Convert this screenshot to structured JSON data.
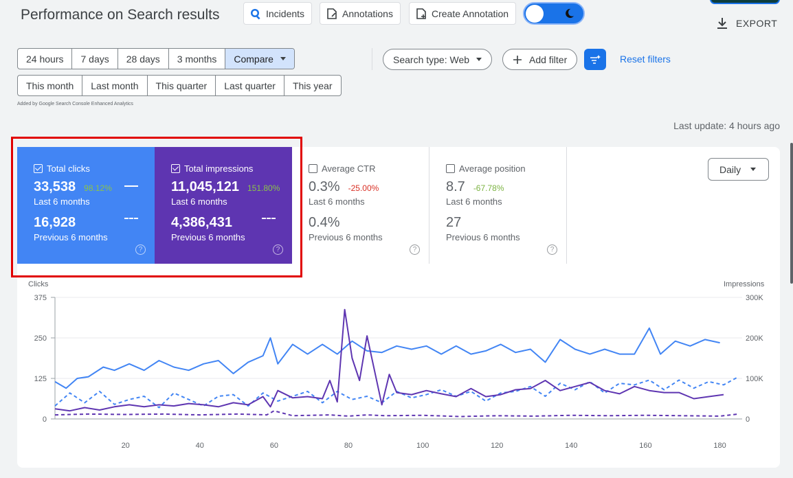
{
  "header": {
    "title": "Performance on Search results",
    "incidents_label": "Incidents",
    "annotations_label": "Annotations",
    "create_annotation_label": "Create Annotation",
    "export_label": "EXPORT"
  },
  "date_ranges": {
    "row1": [
      "24 hours",
      "7 days",
      "28 days",
      "3 months"
    ],
    "compare_label": "Compare",
    "row2": [
      "This month",
      "Last month",
      "This quarter",
      "Last quarter",
      "This year"
    ]
  },
  "filters": {
    "search_type_label": "Search type: Web",
    "add_filter_label": "Add filter",
    "reset_label": "Reset filters"
  },
  "added_note": "Added by Google Search Console Enhanced Analytics",
  "last_update": "Last update: 4 hours ago",
  "metrics": {
    "clicks": {
      "label": "Total clicks",
      "value": "33,538",
      "change": "98.12%",
      "period": "Last 6 months",
      "prev_value": "16,928",
      "prev_period": "Previous 6 months"
    },
    "impressions": {
      "label": "Total impressions",
      "value": "11,045,121",
      "change": "151.80%",
      "period": "Last 6 months",
      "prev_value": "4,386,431",
      "prev_period": "Previous 6 months"
    },
    "ctr": {
      "label": "Average CTR",
      "value": "0.3%",
      "change": "-25.00%",
      "period": "Last 6 months",
      "prev_value": "0.4%",
      "prev_period": "Previous 6 months"
    },
    "position": {
      "label": "Average position",
      "value": "8.7",
      "change": "-67.78%",
      "period": "Last 6 months",
      "prev_value": "27",
      "prev_period": "Previous 6 months"
    }
  },
  "granularity": "Daily",
  "colors": {
    "clicks": "#4285f4",
    "impressions": "#5e35b1",
    "positive": "#8bc34a",
    "negative": "#d93025",
    "highlight": "#e10000"
  },
  "chart_data": {
    "type": "line",
    "left_axis_label": "Clicks",
    "right_axis_label": "Impressions",
    "y_left_ticks": [
      "375",
      "250",
      "125",
      "0"
    ],
    "y_right_ticks": [
      "300K",
      "200K",
      "100K",
      "0"
    ],
    "x_ticks": [
      "20",
      "40",
      "60",
      "80",
      "100",
      "120",
      "140",
      "160",
      "180"
    ],
    "ylim_left": [
      0,
      375
    ],
    "ylim_right": [
      0,
      300000
    ],
    "xlim": [
      1,
      186
    ],
    "series": [
      {
        "name": "Total clicks",
        "axis": "left",
        "style": "solid",
        "points": [
          [
            1,
            115
          ],
          [
            4,
            95
          ],
          [
            7,
            125
          ],
          [
            10,
            130
          ],
          [
            14,
            160
          ],
          [
            17,
            150
          ],
          [
            21,
            170
          ],
          [
            25,
            150
          ],
          [
            29,
            180
          ],
          [
            33,
            160
          ],
          [
            37,
            150
          ],
          [
            41,
            170
          ],
          [
            45,
            180
          ],
          [
            49,
            140
          ],
          [
            53,
            175
          ],
          [
            57,
            195
          ],
          [
            59,
            250
          ],
          [
            61,
            170
          ],
          [
            65,
            230
          ],
          [
            69,
            200
          ],
          [
            73,
            230
          ],
          [
            77,
            200
          ],
          [
            81,
            240
          ],
          [
            85,
            210
          ],
          [
            89,
            205
          ],
          [
            93,
            225
          ],
          [
            97,
            215
          ],
          [
            101,
            225
          ],
          [
            105,
            200
          ],
          [
            109,
            225
          ],
          [
            113,
            200
          ],
          [
            117,
            210
          ],
          [
            121,
            230
          ],
          [
            125,
            205
          ],
          [
            129,
            215
          ],
          [
            133,
            175
          ],
          [
            137,
            245
          ],
          [
            141,
            215
          ],
          [
            145,
            200
          ],
          [
            149,
            215
          ],
          [
            153,
            200
          ],
          [
            157,
            200
          ],
          [
            161,
            280
          ],
          [
            164,
            200
          ],
          [
            168,
            240
          ],
          [
            172,
            225
          ],
          [
            176,
            245
          ],
          [
            180,
            235
          ]
        ]
      },
      {
        "name": "Total clicks (previous)",
        "axis": "left",
        "style": "dashed",
        "points": [
          [
            1,
            40
          ],
          [
            5,
            80
          ],
          [
            9,
            50
          ],
          [
            13,
            85
          ],
          [
            17,
            45
          ],
          [
            21,
            60
          ],
          [
            25,
            70
          ],
          [
            29,
            35
          ],
          [
            33,
            80
          ],
          [
            37,
            60
          ],
          [
            41,
            40
          ],
          [
            45,
            70
          ],
          [
            49,
            75
          ],
          [
            53,
            40
          ],
          [
            57,
            80
          ],
          [
            61,
            55
          ],
          [
            65,
            70
          ],
          [
            69,
            85
          ],
          [
            73,
            50
          ],
          [
            77,
            85
          ],
          [
            81,
            60
          ],
          [
            85,
            70
          ],
          [
            89,
            50
          ],
          [
            93,
            85
          ],
          [
            97,
            65
          ],
          [
            101,
            75
          ],
          [
            105,
            90
          ],
          [
            109,
            70
          ],
          [
            113,
            85
          ],
          [
            117,
            55
          ],
          [
            121,
            80
          ],
          [
            125,
            85
          ],
          [
            129,
            100
          ],
          [
            133,
            70
          ],
          [
            137,
            110
          ],
          [
            141,
            90
          ],
          [
            145,
            115
          ],
          [
            149,
            80
          ],
          [
            153,
            110
          ],
          [
            157,
            105
          ],
          [
            161,
            120
          ],
          [
            165,
            90
          ],
          [
            169,
            120
          ],
          [
            173,
            95
          ],
          [
            177,
            115
          ],
          [
            181,
            105
          ],
          [
            185,
            130
          ]
        ]
      },
      {
        "name": "Total impressions",
        "axis": "right",
        "style": "solid",
        "points": [
          [
            1,
            25000
          ],
          [
            5,
            20000
          ],
          [
            9,
            28000
          ],
          [
            13,
            22000
          ],
          [
            17,
            30000
          ],
          [
            21,
            35000
          ],
          [
            25,
            30000
          ],
          [
            29,
            35000
          ],
          [
            33,
            32000
          ],
          [
            37,
            38000
          ],
          [
            41,
            35000
          ],
          [
            45,
            30000
          ],
          [
            49,
            40000
          ],
          [
            53,
            35000
          ],
          [
            57,
            55000
          ],
          [
            59,
            30000
          ],
          [
            61,
            70000
          ],
          [
            65,
            52000
          ],
          [
            69,
            55000
          ],
          [
            73,
            50000
          ],
          [
            75,
            95000
          ],
          [
            77,
            42000
          ],
          [
            79,
            270000
          ],
          [
            81,
            150000
          ],
          [
            83,
            95000
          ],
          [
            85,
            205000
          ],
          [
            87,
            120000
          ],
          [
            89,
            35000
          ],
          [
            91,
            110000
          ],
          [
            93,
            65000
          ],
          [
            97,
            60000
          ],
          [
            101,
            70000
          ],
          [
            105,
            62000
          ],
          [
            109,
            55000
          ],
          [
            113,
            75000
          ],
          [
            117,
            55000
          ],
          [
            121,
            60000
          ],
          [
            125,
            72000
          ],
          [
            129,
            75000
          ],
          [
            133,
            95000
          ],
          [
            137,
            70000
          ],
          [
            141,
            80000
          ],
          [
            145,
            90000
          ],
          [
            149,
            70000
          ],
          [
            153,
            62000
          ],
          [
            157,
            80000
          ],
          [
            161,
            70000
          ],
          [
            165,
            65000
          ],
          [
            169,
            65000
          ],
          [
            173,
            50000
          ],
          [
            177,
            55000
          ],
          [
            181,
            60000
          ]
        ]
      },
      {
        "name": "Total impressions (previous)",
        "axis": "right",
        "style": "dashed",
        "points": [
          [
            1,
            10000
          ],
          [
            10,
            12000
          ],
          [
            20,
            11000
          ],
          [
            30,
            12000
          ],
          [
            40,
            10000
          ],
          [
            50,
            12000
          ],
          [
            58,
            10000
          ],
          [
            60,
            20000
          ],
          [
            65,
            8000
          ],
          [
            75,
            10000
          ],
          [
            80,
            7000
          ],
          [
            85,
            10000
          ],
          [
            90,
            8000
          ],
          [
            100,
            9000
          ],
          [
            110,
            6000
          ],
          [
            120,
            8000
          ],
          [
            130,
            7000
          ],
          [
            140,
            9000
          ],
          [
            150,
            8000
          ],
          [
            160,
            9000
          ],
          [
            170,
            8000
          ],
          [
            180,
            7000
          ],
          [
            185,
            12000
          ]
        ]
      }
    ]
  }
}
